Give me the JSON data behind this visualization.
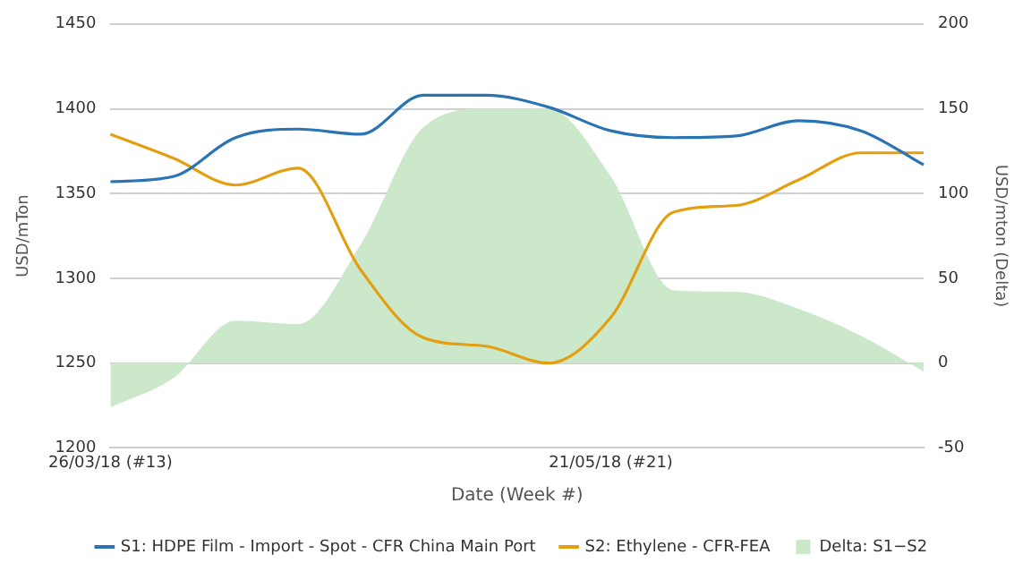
{
  "chart_data": {
    "type": "line",
    "xlabel": "Date (Week #)",
    "ylabel": "USD/mTon",
    "y2label": "USD/mton (Delta)",
    "categories": [
      "26/03/18 (#13)",
      null,
      null,
      null,
      null,
      null,
      null,
      null,
      "21/05/18 (#21)",
      null,
      null,
      null,
      null,
      null
    ],
    "series": [
      {
        "name": "S1: HDPE Film - Import - Spot - CFR China Main Port",
        "color": "#2b74b3",
        "values": [
          1357,
          1360,
          1383,
          1388,
          1385,
          1408,
          1408,
          1401,
          1387,
          1383,
          1384,
          1393,
          1387,
          1367
        ]
      },
      {
        "name": "S2: Ethylene - CFR-FEA",
        "color": "#e2a010",
        "values": [
          1385,
          1371,
          1355,
          1365,
          1305,
          1265,
          1260,
          1250,
          1277,
          1339,
          1343,
          1358,
          1374,
          1374
        ]
      },
      {
        "name": "Delta: S1−S2",
        "type": "area",
        "axis": "y2",
        "color": "#cce8ca",
        "values": [
          -26,
          -9,
          25,
          23,
          70,
          139,
          150,
          150,
          110,
          43,
          42,
          32,
          16,
          -5
        ]
      }
    ],
    "ylim": [
      1200,
      1450
    ],
    "yticks": [
      1200,
      1250,
      1300,
      1350,
      1400,
      1450
    ],
    "y2lim": [
      -50,
      200
    ],
    "y2ticks": [
      -50,
      0,
      50,
      100,
      150,
      200
    ],
    "grid": "y",
    "legend": "bottom",
    "marker": "none",
    "line_style": "solid"
  }
}
